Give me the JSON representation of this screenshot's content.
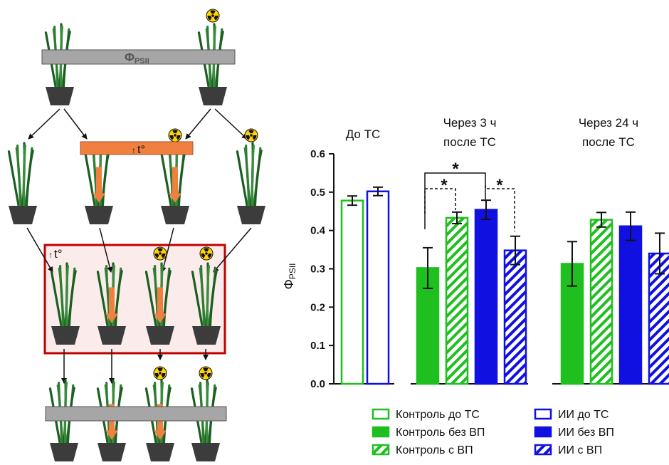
{
  "figure": {
    "colors": {
      "green": "#1FBF1F",
      "blue": "#1010E0",
      "gray_bar": "#A6A6A6",
      "orange": "#F08040",
      "frame_red": "#C00000",
      "frame_fill": "#FBEBEB",
      "pot": "#3C3C3C",
      "leaf": "#2E7D32"
    },
    "schematic": {
      "measure_label": "ΦPSII",
      "measure_main": "Φ",
      "measure_sub": "PSII",
      "heat_label": "t°",
      "radiation_icon": "radiation-icon",
      "heat_arrow_icon": "up-arrow-icon"
    }
  },
  "chart_data": {
    "type": "bar",
    "ylabel_main": "Φ",
    "ylabel_sub": "PSII",
    "ylim": [
      0,
      0.6
    ],
    "yticks": [
      "0.0",
      "0.1",
      "0.2",
      "0.3",
      "0.4",
      "0.5",
      "0.6"
    ],
    "grid": false,
    "legend_position": "bottom",
    "groups": [
      {
        "title_lines": [
          "До ТС"
        ],
        "bars": [
          {
            "series": "Контроль до ТС",
            "value": 0.478,
            "err": 0.012
          },
          {
            "series": "ИИ до ТС",
            "value": 0.502,
            "err": 0.011
          }
        ]
      },
      {
        "title_lines": [
          "Через 3 ч",
          "после ТС"
        ],
        "bars": [
          {
            "series": "Контроль без ВП",
            "value": 0.302,
            "err": 0.053
          },
          {
            "series": "Контроль с ВП",
            "value": 0.433,
            "err": 0.015
          },
          {
            "series": "ИИ без ВП",
            "value": 0.454,
            "err": 0.025
          },
          {
            "series": "ИИ с ВП",
            "value": 0.348,
            "err": 0.037
          }
        ]
      },
      {
        "title_lines": [
          "Через 24 ч",
          "после ТС"
        ],
        "bars": [
          {
            "series": "Контроль без ВП",
            "value": 0.313,
            "err": 0.058
          },
          {
            "series": "Контроль с ВП",
            "value": 0.428,
            "err": 0.019
          },
          {
            "series": "ИИ без ВП",
            "value": 0.411,
            "err": 0.037
          },
          {
            "series": "ИИ с ВП",
            "value": 0.34,
            "err": 0.053
          }
        ]
      }
    ],
    "series": [
      {
        "name": "Контроль до ТС",
        "color": "#1FBF1F",
        "fill": "outline"
      },
      {
        "name": "Контроль без ВП",
        "color": "#1FBF1F",
        "fill": "solid"
      },
      {
        "name": "Контроль с ВП",
        "color": "#1FBF1F",
        "fill": "hatched"
      },
      {
        "name": "ИИ до ТС",
        "color": "#1010E0",
        "fill": "outline"
      },
      {
        "name": "ИИ без ВП",
        "color": "#1010E0",
        "fill": "solid"
      },
      {
        "name": "ИИ с ВП",
        "color": "#1010E0",
        "fill": "hatched"
      }
    ],
    "significance": [
      "*",
      "*",
      "*"
    ]
  }
}
